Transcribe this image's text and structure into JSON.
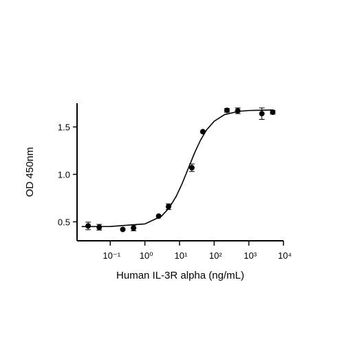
{
  "chart_data": {
    "type": "scatter",
    "x_label": "Human IL-3R alpha (ng/mL)",
    "y_label": "OD 450nm",
    "xscale": "log",
    "xlim": [
      0.011,
      10000
    ],
    "xticks": [
      {
        "value": 0.1,
        "label": "10⁻¹"
      },
      {
        "value": 1,
        "label": "10⁰"
      },
      {
        "value": 10,
        "label": "10¹"
      },
      {
        "value": 100,
        "label": "10²"
      },
      {
        "value": 1000,
        "label": "10³"
      },
      {
        "value": 10000,
        "label": "10⁴"
      }
    ],
    "ylim": [
      0.3,
      1.75
    ],
    "yticks": [
      0.5,
      {
        "value": 1.0,
        "label": "1.0"
      },
      {
        "value": 1.5,
        "label": "1.5"
      }
    ],
    "color": "#000000",
    "series": [
      {
        "kind": "points",
        "x": [
          0.023,
          0.048,
          0.23,
          0.47,
          2.5,
          4.8,
          22.7,
          47,
          234,
          480,
          2380,
          4900
        ],
        "values": [
          0.457,
          0.443,
          0.42,
          0.435,
          0.56,
          0.66,
          1.07,
          1.45,
          1.675,
          1.67,
          1.64,
          1.655
        ],
        "errors": [
          0.04,
          0.03,
          null,
          0.03,
          null,
          0.03,
          0.04,
          null,
          0.02,
          0.03,
          0.06,
          0.02
        ]
      },
      {
        "kind": "line",
        "x": [
          0.015,
          0.1,
          1,
          3,
          5,
          8,
          12,
          18,
          27,
          40,
          60,
          100,
          200,
          500,
          1000,
          5000
        ],
        "values": [
          0.45,
          0.451,
          0.478,
          0.559,
          0.646,
          0.768,
          0.907,
          1.065,
          1.224,
          1.358,
          1.467,
          1.56,
          1.63,
          1.664,
          1.673,
          1.679
        ]
      }
    ]
  }
}
